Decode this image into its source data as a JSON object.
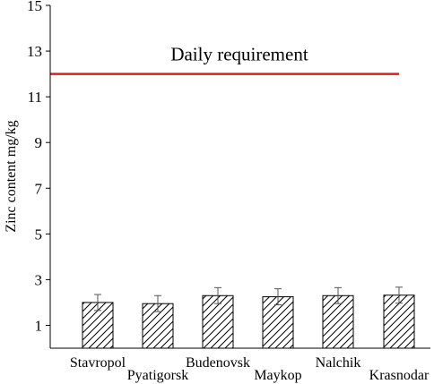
{
  "chart_data": {
    "type": "bar",
    "categories": [
      "Stavropol",
      "Pyatigorsk",
      "Budenovsk",
      "Maykop",
      "Nalchik",
      "Krasnodar"
    ],
    "values": [
      2.0,
      1.95,
      2.3,
      2.25,
      2.3,
      2.32
    ],
    "errors": [
      0.35,
      0.35,
      0.35,
      0.35,
      0.35,
      0.35
    ],
    "ylabel": "Zinc content mg/kg",
    "xlabel": "",
    "ylim": [
      0,
      15
    ],
    "yticks": [
      1,
      3,
      5,
      7,
      9,
      11,
      13,
      15
    ],
    "reference_line": {
      "value": 12,
      "label": "Daily requirement",
      "color": "#e8191c"
    },
    "bar_fill": "hatched",
    "grid": false
  }
}
